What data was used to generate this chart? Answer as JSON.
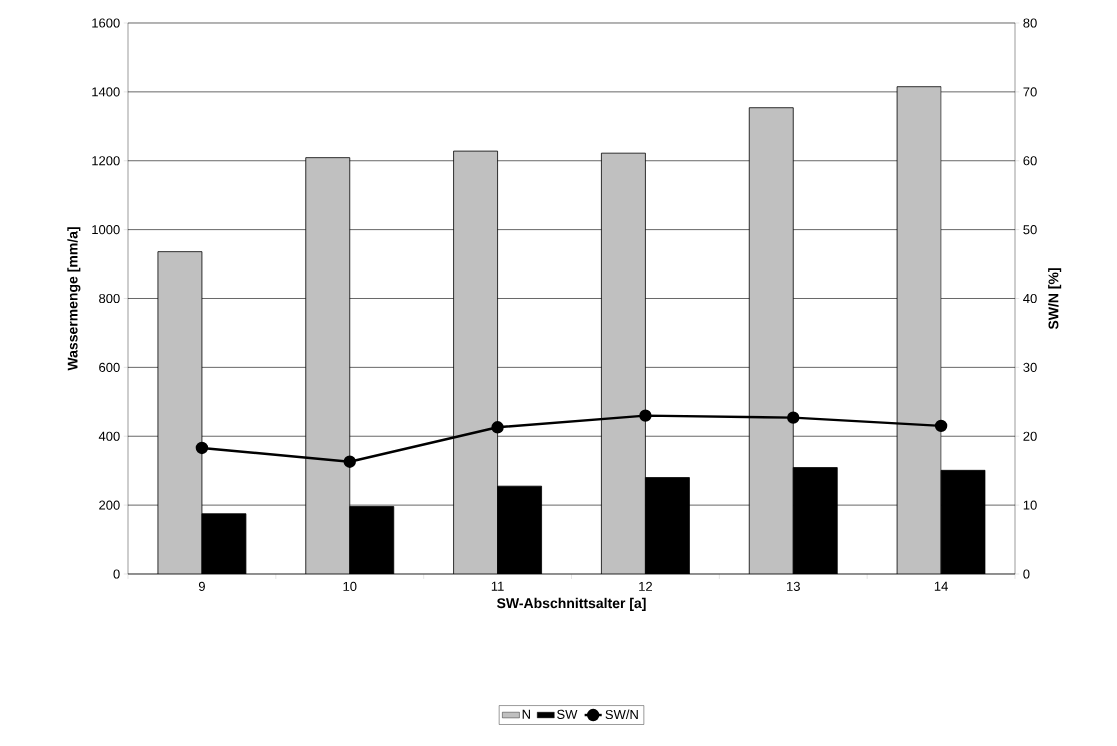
{
  "chart_data": {
    "type": "bar",
    "xlabel": "SW-Abschnittsalter [a]",
    "ylabel": "Wassermenge [mm/a]",
    "y2label": "SW/N [%]",
    "categories": [
      "9",
      "10",
      "11",
      "12",
      "13",
      "14"
    ],
    "series": [
      {
        "name": "N",
        "color": "#c0c0c0",
        "values": [
          936,
          1209,
          1228,
          1222,
          1354,
          1415
        ]
      },
      {
        "name": "SW",
        "color": "#000000",
        "values": [
          175,
          196,
          255,
          280,
          309,
          301
        ]
      },
      {
        "name": "SW/N",
        "type": "line",
        "axis": "y2",
        "color": "#000000",
        "values": [
          18.3,
          16.3,
          21.3,
          23.0,
          22.7,
          21.5
        ]
      }
    ],
    "ylim": [
      0,
      1600
    ],
    "yticks": [
      0,
      200,
      400,
      600,
      800,
      1000,
      1200,
      1400,
      1600
    ],
    "y2lim": [
      0,
      80
    ],
    "y2ticks": [
      0,
      10,
      20,
      30,
      40,
      50,
      60,
      70,
      80
    ],
    "grid": "y",
    "legend": "bottom",
    "marker": "circle",
    "line_style": "solid"
  }
}
